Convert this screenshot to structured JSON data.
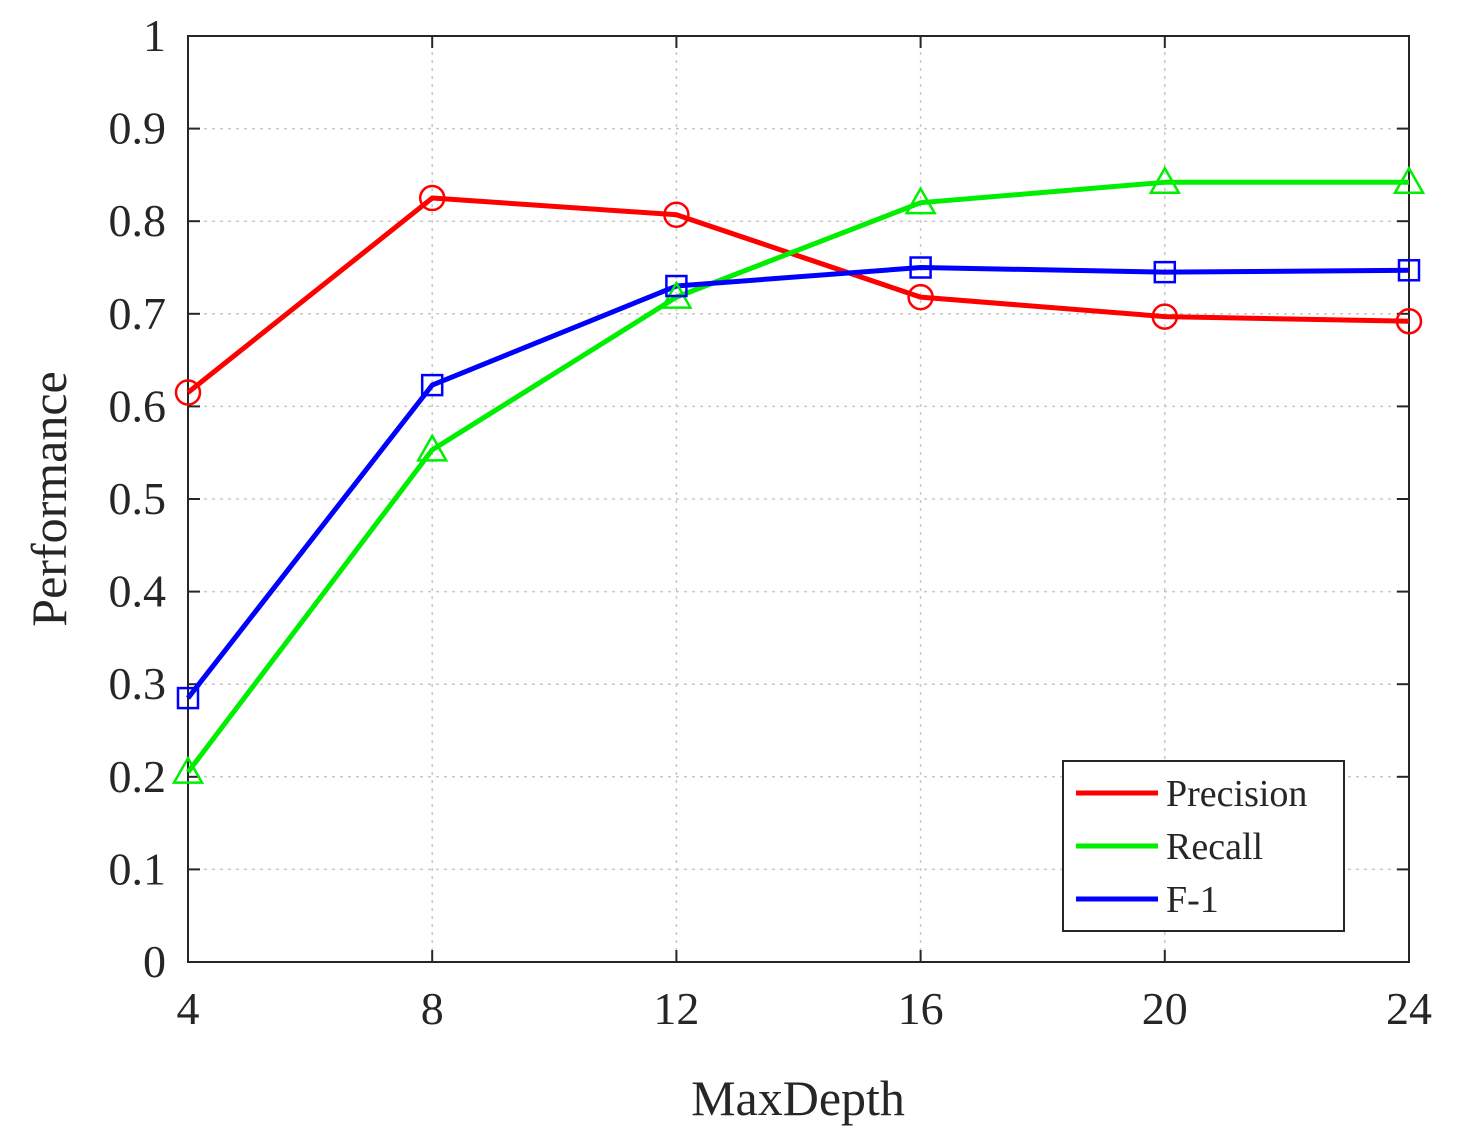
{
  "chart_data": {
    "type": "line",
    "title": "",
    "xlabel": "MaxDepth",
    "ylabel": "Performance",
    "x": [
      4,
      8,
      12,
      16,
      20,
      24
    ],
    "xlim": [
      4,
      24
    ],
    "ylim": [
      0,
      1
    ],
    "xticks": [
      "4",
      "8",
      "12",
      "16",
      "20",
      "24"
    ],
    "yticks": [
      "0",
      "0.1",
      "0.2",
      "0.3",
      "0.4",
      "0.5",
      "0.6",
      "0.7",
      "0.8",
      "0.9",
      "1"
    ],
    "grid": true,
    "legend_position": "bottom-right",
    "series": [
      {
        "name": "Precision",
        "color": "#ff0000",
        "marker": "circle",
        "values": [
          0.615,
          0.825,
          0.807,
          0.718,
          0.697,
          0.692
        ]
      },
      {
        "name": "Recall",
        "color": "#00ee00",
        "marker": "triangle",
        "values": [
          0.205,
          0.553,
          0.718,
          0.82,
          0.842,
          0.842
        ]
      },
      {
        "name": "F-1",
        "color": "#0000ff",
        "marker": "square",
        "values": [
          0.285,
          0.623,
          0.73,
          0.75,
          0.745,
          0.747
        ]
      }
    ]
  }
}
